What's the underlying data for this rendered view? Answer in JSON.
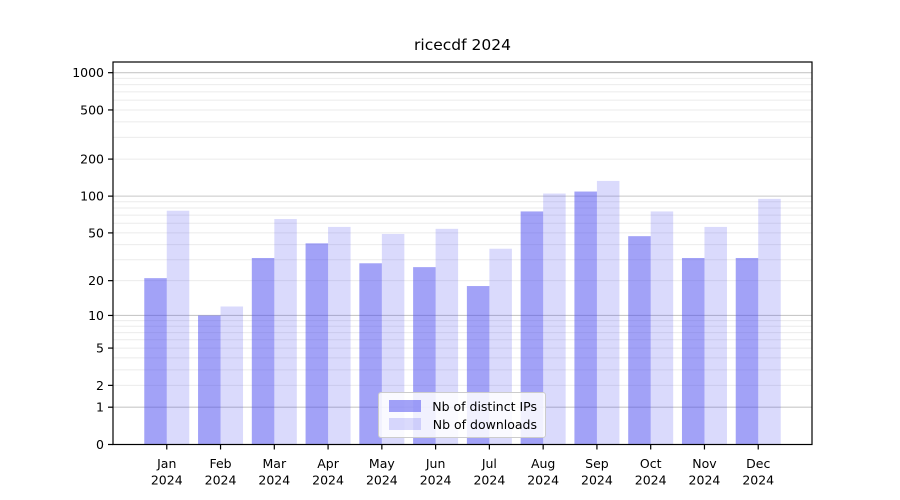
{
  "chart_data": {
    "type": "bar",
    "title": "ricecdf 2024",
    "categories": [
      "Jan",
      "Feb",
      "Mar",
      "Apr",
      "May",
      "Jun",
      "Jul",
      "Aug",
      "Sep",
      "Oct",
      "Nov",
      "Dec"
    ],
    "year_label": "2024",
    "series": [
      {
        "name": "Nb of distinct IPs",
        "color": "rgba(70,70,240,0.5)",
        "values": [
          21,
          10,
          31,
          41,
          28,
          26,
          18,
          75,
          109,
          47,
          31,
          31
        ]
      },
      {
        "name": "Nb of downloads",
        "color": "rgba(70,70,240,0.2)",
        "values": [
          76,
          12,
          65,
          56,
          49,
          54,
          37,
          105,
          133,
          75,
          56,
          95
        ]
      }
    ],
    "yscale": "log1p",
    "yticks": [
      0,
      1,
      2,
      5,
      10,
      20,
      50,
      100,
      200,
      500,
      1000
    ],
    "ylim": [
      0,
      1220
    ],
    "major_gridlines": [
      1,
      10,
      100,
      1000
    ],
    "minor_gridlines": [
      2,
      3,
      4,
      5,
      6,
      7,
      8,
      9,
      20,
      30,
      40,
      50,
      60,
      70,
      80,
      90,
      200,
      300,
      400,
      500,
      600,
      700,
      800,
      900
    ],
    "colors": {
      "major_grid": "#c8c8c8",
      "minor_grid": "#ebebeb",
      "axis": "#000000"
    },
    "legend": {
      "position": "bottom-center"
    }
  }
}
